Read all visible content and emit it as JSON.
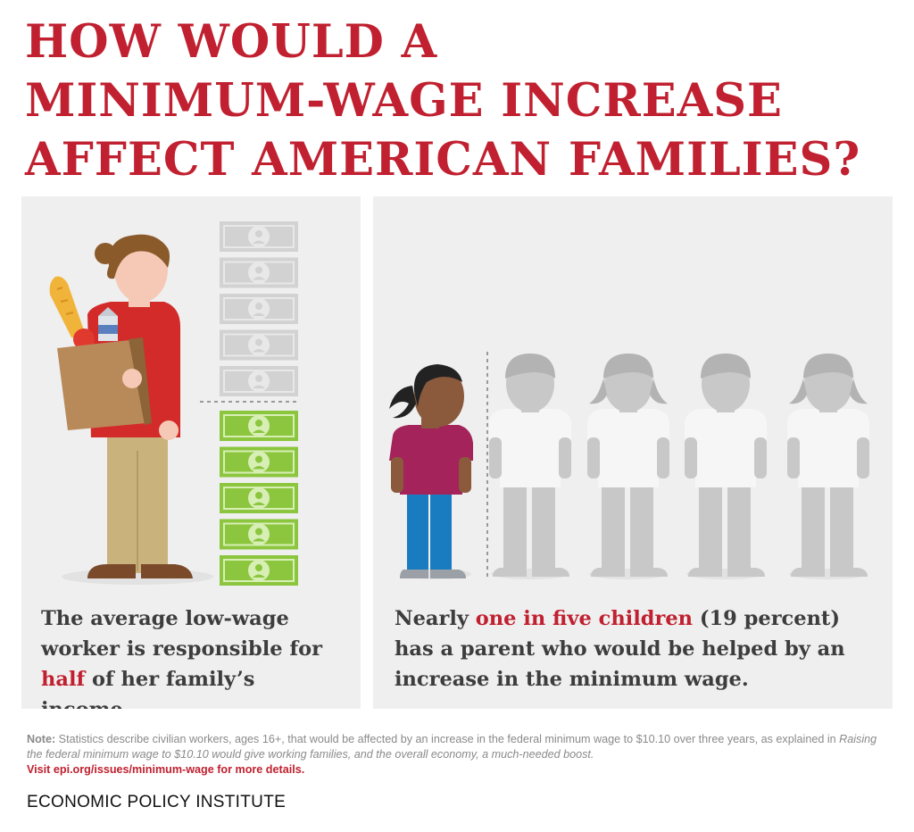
{
  "title": {
    "line1": "HOW WOULD A",
    "line2": "MINIMUM-WAGE INCREASE",
    "line3": "AFFECT AMERICAN FAMILIES?"
  },
  "left_panel": {
    "caption_before": "The average low-wage worker is responsible for ",
    "caption_highlight": "half",
    "caption_after": " of her family’s income.",
    "bills_gray": 5,
    "bills_green": 5
  },
  "right_panel": {
    "caption_before": "Nearly ",
    "caption_highlight": "one in five children",
    "caption_after": " (19 percent) has a parent who would be helped by an increase in the minimum wage.",
    "highlighted_children": 1,
    "other_children": 4
  },
  "note": {
    "label": "Note:",
    "text_before": " Statistics describe civilian workers, ages 16+, that would be affected by an increase in the federal minimum wage to $10.10 over three years, as explained in ",
    "source_italic": "Raising the federal minimum wage to $10.10 would give working families, and the overall economy, a much-needed boost.",
    "link": "Visit epi.org/issues/minimum-wage for more details."
  },
  "organization": "ECONOMIC POLICY INSTITUTE",
  "colors": {
    "accent_red": "#c0202f",
    "panel_bg": "#efefef",
    "bill_green": "#8cc63f",
    "bill_gray": "#d2d2d2",
    "worker_shirt": "#d32a2a",
    "worker_pants": "#c9b27c",
    "girl_shirt": "#a3235a",
    "girl_pants": "#1a7cc0",
    "silhouette": "#c8c8c8"
  }
}
